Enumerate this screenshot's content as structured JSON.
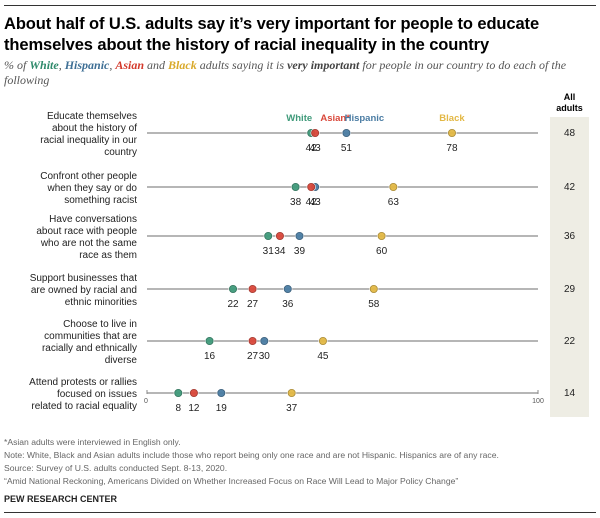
{
  "title": "About half of U.S. adults say it’s very important for people to educate themselves about the history of racial inequality in the country",
  "subtitle": {
    "prefix": "% of ",
    "white": "White",
    "sep1": ", ",
    "hispanic": "Hispanic",
    "sep2": ", ",
    "asian": "Asian",
    "and": " and ",
    "black": "Black",
    "mid": " adults saying it is ",
    "emphasis": "very important",
    "suffix": " for people in our country to do each of the following"
  },
  "colors": {
    "White": "#3f9a7a",
    "Asian*": "#d9473a",
    "Hispanic": "#4a7ca3",
    "Black": "#e3b845",
    "axis": "#8a8a8a",
    "all_adults_bg": "#eeede4"
  },
  "chart_data": {
    "type": "dot",
    "title": "About half of U.S. adults say it’s very important for people to educate themselves about the history of racial inequality in the country",
    "xlim": [
      0,
      100
    ],
    "x_ticks": [
      "0",
      "100"
    ],
    "series_order": [
      "White",
      "Asian*",
      "Hispanic",
      "Black"
    ],
    "legend_placement": "top-inline (above first row)",
    "all_adults_header": [
      "All",
      "adults"
    ],
    "categories": [
      {
        "label": [
          "Educate themselves",
          "about the history of",
          "racial inequality in our",
          "country"
        ],
        "White": 42,
        "Asian*": 43,
        "Hispanic": 51,
        "Black": 78,
        "All adults": 48
      },
      {
        "label": [
          "Confront other people",
          "when they say or do",
          "something racist"
        ],
        "White": 38,
        "Asian*": 42,
        "Hispanic": 43,
        "Black": 63,
        "All adults": 42
      },
      {
        "label": [
          "Have conversations",
          "about race with people",
          "who are not the same",
          "race as them"
        ],
        "White": 31,
        "Asian*": 34,
        "Hispanic": 39,
        "Black": 60,
        "All adults": 36
      },
      {
        "label": [
          "Support businesses that",
          "are owned by racial and",
          "ethnic minorities"
        ],
        "White": 22,
        "Asian*": 27,
        "Hispanic": 36,
        "Black": 58,
        "All adults": 29
      },
      {
        "label": [
          "Choose to live in",
          "communities that are",
          "racially and ethnically",
          "diverse"
        ],
        "White": 16,
        "Asian*": 27,
        "Hispanic": 30,
        "Black": 45,
        "All adults": 22
      },
      {
        "label": [
          "Attend protests or rallies",
          "focused on issues",
          "related to racial equality"
        ],
        "White": 8,
        "Asian*": 12,
        "Hispanic": 19,
        "Black": 37,
        "All adults": 14
      }
    ]
  },
  "notes": [
    "*Asian adults were interviewed in English only.",
    "Note: White, Black and Asian adults include those who report being only one race and are not Hispanic. Hispanics are of any race.",
    "Source: Survey of U.S. adults conducted Sept. 8-13, 2020.",
    "“Amid National Reckoning, Americans Divided on Whether Increased Focus on Race Will Lead to Major Policy Change”"
  ],
  "source_org": "PEW RESEARCH CENTER"
}
